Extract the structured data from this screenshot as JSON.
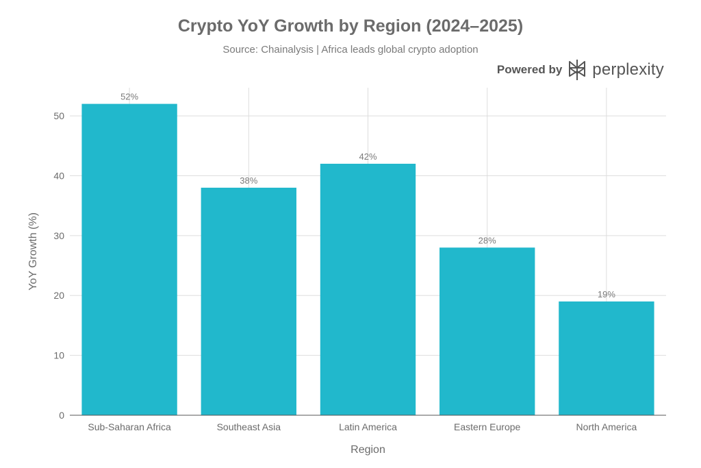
{
  "header": {
    "title": "Crypto YoY Growth by Region (2024–2025)",
    "subtitle": "Source: Chainalysis | Africa leads global crypto adoption"
  },
  "branding": {
    "prefix": "Powered by",
    "name": "perplexity",
    "logo_icon": "perplexity-logo-icon"
  },
  "colors": {
    "bar": "#21b8cc",
    "grid": "#dddddd",
    "text": "#6b6b6b"
  },
  "chart_data": {
    "type": "bar",
    "title": "Crypto YoY Growth by Region (2024–2025)",
    "subtitle": "Source: Chainalysis | Africa leads global crypto adoption",
    "xlabel": "Region",
    "ylabel": "YoY Growth (%)",
    "categories": [
      "Sub-Saharan Africa",
      "Southeast Asia",
      "Latin America",
      "Eastern Europe",
      "North America"
    ],
    "values": [
      52,
      38,
      42,
      28,
      19
    ],
    "data_labels": [
      "52%",
      "38%",
      "42%",
      "28%",
      "19%"
    ],
    "ylim": [
      0,
      54.7
    ],
    "yticks": [
      0,
      10,
      20,
      30,
      40,
      50
    ],
    "grid": true,
    "legend": "none"
  }
}
